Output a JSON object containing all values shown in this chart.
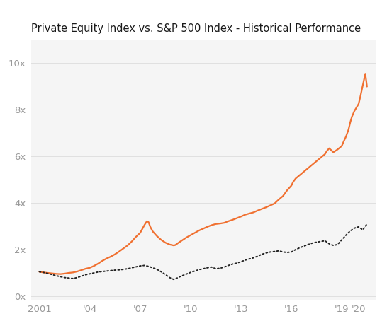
{
  "title": "Private Equity Index vs. S&P 500 Index - Historical Performance",
  "title_fontsize": 10.5,
  "background_color": "#ffffff",
  "plot_bg_color": "#f5f5f5",
  "x_ticks": [
    2001,
    2004,
    2007,
    2010,
    2013,
    2016,
    2019,
    2020
  ],
  "x_tick_labels": [
    "2001",
    "'04",
    "'07",
    "'10",
    "'13",
    "'16",
    "'19",
    "'20"
  ],
  "y_ticks": [
    0,
    2,
    4,
    6,
    8,
    10
  ],
  "y_tick_labels": [
    "0x",
    "2x",
    "4x",
    "6x",
    "8x",
    "10x"
  ],
  "xlim": [
    2000.5,
    2021.0
  ],
  "ylim": [
    -0.15,
    11.0
  ],
  "grid_color": "#e0e0e0",
  "pe_color": "#f07030",
  "sp_color": "#222222",
  "pe_linewidth": 1.6,
  "sp_linewidth": 1.4,
  "pe_x": [
    2001.0,
    2001.25,
    2001.5,
    2001.75,
    2002.0,
    2002.25,
    2002.5,
    2002.75,
    2003.0,
    2003.25,
    2003.5,
    2003.75,
    2004.0,
    2004.25,
    2004.5,
    2004.75,
    2005.0,
    2005.25,
    2005.5,
    2005.75,
    2006.0,
    2006.25,
    2006.5,
    2006.75,
    2007.0,
    2007.1,
    2007.25,
    2007.4,
    2007.5,
    2007.6,
    2007.75,
    2008.0,
    2008.25,
    2008.5,
    2008.75,
    2009.0,
    2009.1,
    2009.25,
    2009.5,
    2009.75,
    2010.0,
    2010.25,
    2010.5,
    2010.75,
    2011.0,
    2011.25,
    2011.5,
    2011.75,
    2012.0,
    2012.25,
    2012.5,
    2012.75,
    2013.0,
    2013.25,
    2013.5,
    2013.75,
    2014.0,
    2014.25,
    2014.5,
    2014.75,
    2015.0,
    2015.25,
    2015.5,
    2015.75,
    2016.0,
    2016.1,
    2016.25,
    2016.5,
    2016.75,
    2017.0,
    2017.25,
    2017.5,
    2017.75,
    2018.0,
    2018.1,
    2018.25,
    2018.5,
    2018.75,
    2019.0,
    2019.1,
    2019.25,
    2019.4,
    2019.5,
    2019.6,
    2019.75,
    2020.0,
    2020.1,
    2020.25,
    2020.4,
    2020.5
  ],
  "pe_y": [
    1.05,
    1.02,
    1.0,
    0.98,
    0.96,
    0.95,
    0.97,
    1.0,
    1.02,
    1.06,
    1.12,
    1.18,
    1.22,
    1.3,
    1.4,
    1.52,
    1.62,
    1.7,
    1.8,
    1.92,
    2.05,
    2.18,
    2.35,
    2.55,
    2.72,
    2.85,
    3.05,
    3.22,
    3.18,
    2.98,
    2.78,
    2.58,
    2.42,
    2.3,
    2.22,
    2.18,
    2.2,
    2.28,
    2.4,
    2.52,
    2.62,
    2.72,
    2.82,
    2.9,
    2.98,
    3.05,
    3.1,
    3.12,
    3.15,
    3.22,
    3.28,
    3.35,
    3.42,
    3.5,
    3.55,
    3.6,
    3.68,
    3.75,
    3.82,
    3.9,
    3.98,
    4.15,
    4.3,
    4.55,
    4.75,
    4.9,
    5.05,
    5.2,
    5.35,
    5.5,
    5.65,
    5.8,
    5.95,
    6.1,
    6.22,
    6.35,
    6.18,
    6.3,
    6.45,
    6.62,
    6.85,
    7.15,
    7.45,
    7.7,
    7.95,
    8.25,
    8.55,
    9.05,
    9.55,
    9.0
  ],
  "sp_x": [
    2001.0,
    2001.25,
    2001.5,
    2001.75,
    2002.0,
    2002.25,
    2002.5,
    2002.75,
    2003.0,
    2003.25,
    2003.5,
    2003.75,
    2004.0,
    2004.25,
    2004.5,
    2004.75,
    2005.0,
    2005.25,
    2005.5,
    2005.75,
    2006.0,
    2006.25,
    2006.5,
    2006.75,
    2007.0,
    2007.25,
    2007.5,
    2007.75,
    2008.0,
    2008.25,
    2008.5,
    2008.75,
    2009.0,
    2009.1,
    2009.25,
    2009.5,
    2009.75,
    2010.0,
    2010.25,
    2010.5,
    2010.75,
    2011.0,
    2011.25,
    2011.5,
    2011.75,
    2012.0,
    2012.25,
    2012.5,
    2012.75,
    2013.0,
    2013.25,
    2013.5,
    2013.75,
    2014.0,
    2014.25,
    2014.5,
    2014.75,
    2015.0,
    2015.25,
    2015.5,
    2015.75,
    2016.0,
    2016.25,
    2016.5,
    2016.75,
    2017.0,
    2017.25,
    2017.5,
    2017.75,
    2018.0,
    2018.25,
    2018.5,
    2018.75,
    2019.0,
    2019.25,
    2019.5,
    2019.75,
    2020.0,
    2020.25,
    2020.5
  ],
  "sp_y": [
    1.05,
    1.02,
    0.98,
    0.93,
    0.88,
    0.84,
    0.8,
    0.78,
    0.76,
    0.8,
    0.86,
    0.92,
    0.96,
    1.0,
    1.04,
    1.06,
    1.08,
    1.1,
    1.12,
    1.13,
    1.15,
    1.18,
    1.22,
    1.26,
    1.3,
    1.32,
    1.28,
    1.22,
    1.15,
    1.05,
    0.93,
    0.8,
    0.72,
    0.74,
    0.8,
    0.88,
    0.95,
    1.02,
    1.08,
    1.14,
    1.18,
    1.22,
    1.25,
    1.18,
    1.2,
    1.25,
    1.32,
    1.38,
    1.42,
    1.48,
    1.55,
    1.6,
    1.65,
    1.72,
    1.8,
    1.86,
    1.9,
    1.92,
    1.95,
    1.9,
    1.88,
    1.9,
    2.0,
    2.08,
    2.15,
    2.22,
    2.28,
    2.32,
    2.35,
    2.38,
    2.25,
    2.18,
    2.22,
    2.42,
    2.62,
    2.8,
    2.92,
    2.98,
    2.85,
    3.1
  ]
}
